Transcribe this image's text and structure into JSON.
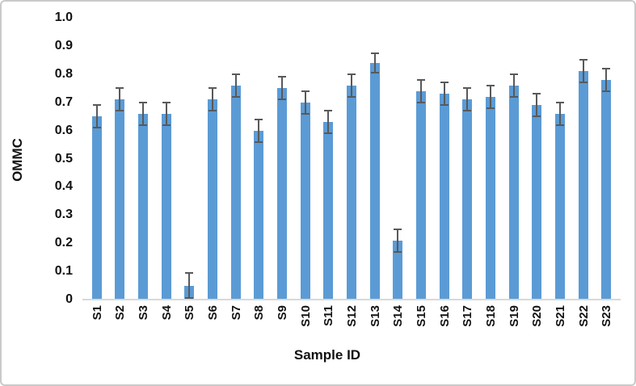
{
  "page": {
    "background_color": "#ffffff",
    "frame_border_color": "#c9c9c9"
  },
  "chart_data": {
    "type": "bar",
    "title": "",
    "xlabel": "Sample ID",
    "ylabel": "OMMC",
    "ylim": [
      0,
      1.0
    ],
    "ytick_step": 0.1,
    "yticks": [
      {
        "value": 1.0,
        "label": "1.0"
      },
      {
        "value": 0.9,
        "label": "0.9"
      },
      {
        "value": 0.8,
        "label": "0.8"
      },
      {
        "value": 0.7,
        "label": "0.7"
      },
      {
        "value": 0.6,
        "label": "0.6"
      },
      {
        "value": 0.5,
        "label": "0.5"
      },
      {
        "value": 0.4,
        "label": "0.4"
      },
      {
        "value": 0.3,
        "label": "0.3"
      },
      {
        "value": 0.2,
        "label": "0.2"
      },
      {
        "value": 0.1,
        "label": "0.1"
      },
      {
        "value": 0,
        "label": "0"
      }
    ],
    "categories": [
      "S1",
      "S2",
      "S3",
      "S4",
      "S5",
      "S6",
      "S7",
      "S8",
      "S9",
      "S10",
      "S11",
      "S12",
      "S13",
      "S14",
      "S15",
      "S16",
      "S17",
      "S18",
      "S19",
      "S20",
      "S21",
      "S22",
      "S23"
    ],
    "series": [
      {
        "name": "OMMC",
        "values": [
          0.65,
          0.71,
          0.66,
          0.66,
          0.05,
          0.71,
          0.76,
          0.6,
          0.75,
          0.7,
          0.63,
          0.76,
          0.84,
          0.21,
          0.74,
          0.73,
          0.71,
          0.72,
          0.76,
          0.69,
          0.66,
          0.81,
          0.78
        ],
        "errors": [
          0.04,
          0.04,
          0.04,
          0.04,
          0.045,
          0.04,
          0.04,
          0.04,
          0.04,
          0.04,
          0.04,
          0.04,
          0.035,
          0.04,
          0.04,
          0.04,
          0.04,
          0.04,
          0.04,
          0.04,
          0.04,
          0.04,
          0.04
        ]
      }
    ],
    "bar_color": "#5B9BD5",
    "error_bar_color": "#58595b",
    "axis_line_color": "#d9d9d9",
    "text_color": "#111111",
    "grid": false,
    "legend_position": "none",
    "x_labels_rotated_degrees": 90
  }
}
